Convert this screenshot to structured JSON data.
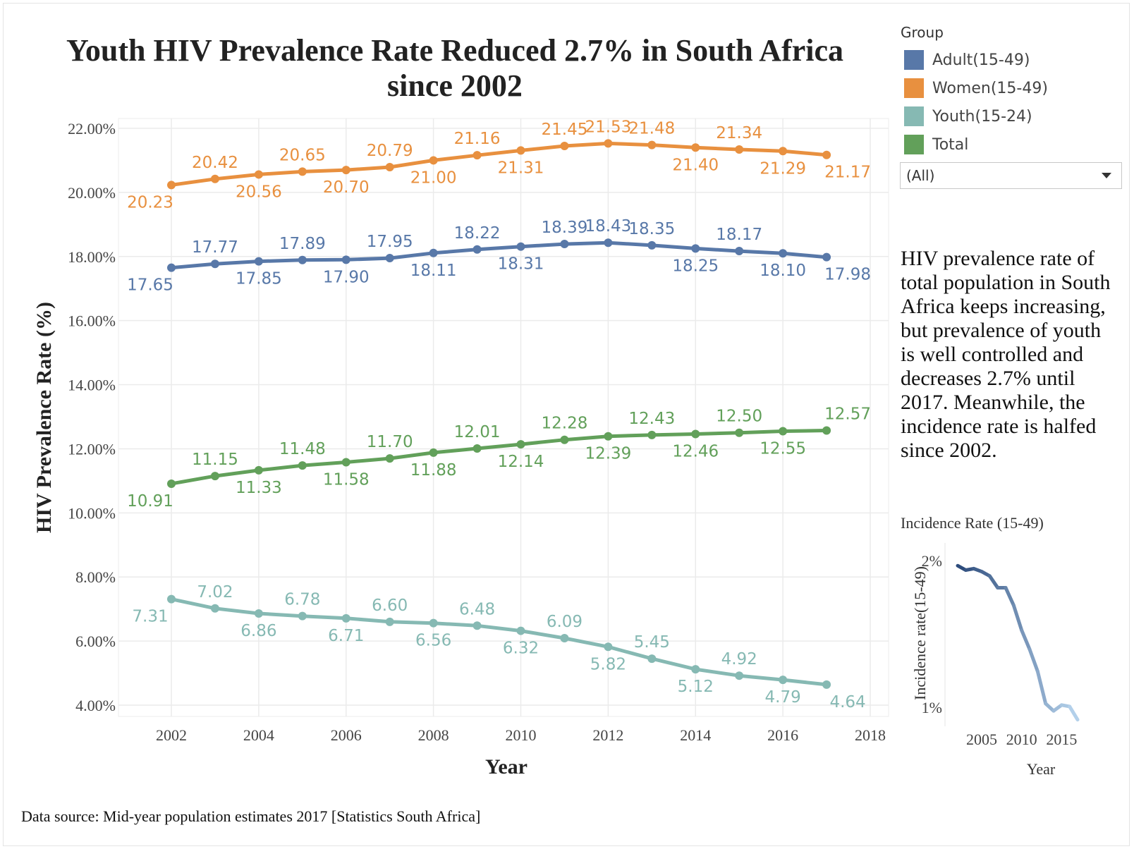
{
  "title_line1": "Youth HIV Prevalence Rate Reduced 2.7% in South Africa",
  "title_line2": "since 2002",
  "legend": {
    "title": "Group",
    "items": [
      {
        "label": "Adult(15-49)",
        "color": "#5878a8"
      },
      {
        "label": "Women(15-49)",
        "color": "#e8903f"
      },
      {
        "label": "Youth(15-24)",
        "color": "#86b9b3"
      },
      {
        "label": "Total",
        "color": "#62a05a"
      }
    ]
  },
  "filter": {
    "value": "(All)"
  },
  "annotation": "HIV prevalence rate of total population in South Africa keeps increasing, but prevalence of youth is well controlled and decreases 2.7% until 2017. Meanwhile, the incidence rate is halfed since 2002.",
  "source": "Data source: Mid-year population estimates 2017 [Statistics South Africa]",
  "chart_data": [
    {
      "type": "line",
      "xlabel": "Year",
      "ylabel": "HIV Prevalence Rate (%)",
      "x": [
        2002,
        2003,
        2004,
        2005,
        2006,
        2007,
        2008,
        2009,
        2010,
        2011,
        2012,
        2013,
        2014,
        2015,
        2016,
        2017
      ],
      "xticks": [
        "2002",
        "2004",
        "2006",
        "2008",
        "2010",
        "2012",
        "2014",
        "2016",
        "2018"
      ],
      "yticks": [
        "4.00%",
        "6.00%",
        "8.00%",
        "10.00%",
        "12.00%",
        "14.00%",
        "16.00%",
        "18.00%",
        "20.00%",
        "22.00%"
      ],
      "ylim": [
        4,
        22
      ],
      "xlim": [
        2001,
        2018.5
      ],
      "grid": true,
      "legend_position": "right",
      "series": [
        {
          "name": "Women(15-49)",
          "color": "#e8903f",
          "values": [
            20.23,
            20.42,
            20.56,
            20.65,
            20.7,
            20.79,
            21.0,
            21.16,
            21.31,
            21.45,
            21.53,
            21.48,
            21.4,
            21.34,
            21.29,
            21.17
          ],
          "labels": [
            "20.23",
            "20.42",
            "20.56",
            "20.65",
            "20.70",
            "20.79",
            "21.00",
            "21.16",
            "21.31",
            "21.45",
            "21.53",
            "21.48",
            "21.40",
            "21.34",
            "21.29",
            "21.17"
          ]
        },
        {
          "name": "Adult(15-49)",
          "color": "#5878a8",
          "values": [
            17.65,
            17.77,
            17.85,
            17.89,
            17.9,
            17.95,
            18.11,
            18.22,
            18.31,
            18.39,
            18.43,
            18.35,
            18.25,
            18.17,
            18.1,
            17.98
          ],
          "labels": [
            "17.65",
            "17.77",
            "17.85",
            "17.89",
            "17.90",
            "17.95",
            "18.11",
            "18.22",
            "18.31",
            "18.39",
            "18.43",
            "18.35",
            "18.25",
            "18.17",
            "18.10",
            "17.98"
          ]
        },
        {
          "name": "Total",
          "color": "#62a05a",
          "values": [
            10.91,
            11.15,
            11.33,
            11.48,
            11.58,
            11.7,
            11.88,
            12.01,
            12.14,
            12.28,
            12.39,
            12.43,
            12.46,
            12.5,
            12.55,
            12.57
          ],
          "labels": [
            "10.91",
            "11.15",
            "11.33",
            "11.48",
            "11.58",
            "11.70",
            "11.88",
            "12.01",
            "12.14",
            "12.28",
            "12.39",
            "12.43",
            "12.46",
            "12.50",
            "12.55",
            "12.57"
          ]
        },
        {
          "name": "Youth(15-24)",
          "color": "#86b9b3",
          "values": [
            7.31,
            7.02,
            6.86,
            6.78,
            6.71,
            6.6,
            6.56,
            6.48,
            6.32,
            6.09,
            5.82,
            5.45,
            5.12,
            4.92,
            4.79,
            4.64
          ],
          "labels": [
            "7.31",
            "7.02",
            "6.86",
            "6.78",
            "6.71",
            "6.60",
            "6.56",
            "6.48",
            "6.32",
            "6.09",
            "5.82",
            "5.45",
            "5.12",
            "4.92",
            "4.79",
            "4.64"
          ]
        }
      ]
    },
    {
      "type": "line",
      "title": "Incidence Rate (15-49)",
      "xlabel": "Year",
      "ylabel": "Incidence rate(15-49)",
      "x": [
        2002,
        2003,
        2004,
        2005,
        2006,
        2007,
        2008,
        2009,
        2010,
        2011,
        2012,
        2013,
        2014,
        2015,
        2016,
        2017
      ],
      "values": [
        1.97,
        1.94,
        1.95,
        1.93,
        1.9,
        1.82,
        1.82,
        1.7,
        1.53,
        1.4,
        1.25,
        1.03,
        0.98,
        1.02,
        1.01,
        0.92
      ],
      "xticks": [
        "2005",
        "2010",
        "2015"
      ],
      "yticks": [
        "1%",
        "2%"
      ],
      "color_start": "#2d4c7c",
      "color_end": "#b3d0ea"
    }
  ]
}
